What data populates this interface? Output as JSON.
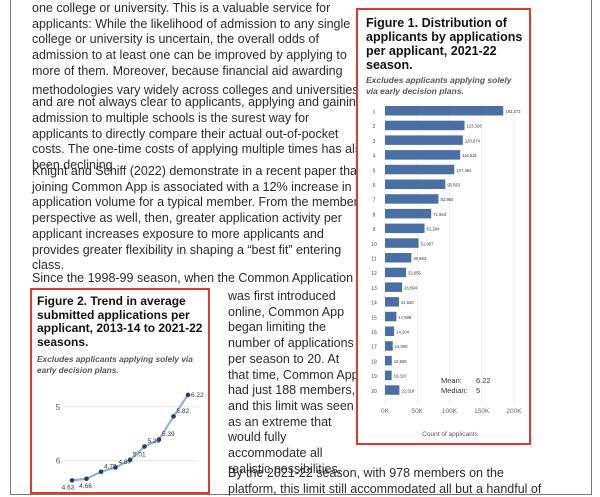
{
  "article": {
    "para1_lines": [
      "one college or university. This is a valuable service for",
      "applicants: While the likelihood of admission to any single",
      "college or university is uncertain, the overall odds of",
      "admission to at least one can be improved by applying to",
      "more of them. Moreover, because financial aid awarding",
      "methodologies vary widely across colleges and universities,",
      "and are not always clear to applicants, applying and gaining",
      "admission to multiple schools is the surest way for",
      "applicants to directly compare their actual out-of-pocket",
      "costs. The one-time costs of applying multiple times has also",
      "been declining"
    ],
    "footnote_marker": "1",
    "para2_lines": [
      "Knight and Schiff (2022) demonstrate in a recent paper that",
      "joining Common App is associated with a 12% increase in",
      "application volume for a typical member. From the member",
      "perspective as well, then, greater application activity per",
      "applicant increases exposure to more applicants and",
      "provides greater flexibility in shaping a “best fit” entering",
      "class."
    ],
    "para3_first_line": "Since the 1998-99 season, when the Common Application",
    "para3_side_lines": [
      "was first introduced",
      "online, Common App",
      "began limiting the",
      "number of applications",
      "per season to 20. At",
      "that time, Common App",
      "had just 188 members,",
      "and this limit was seen",
      "as an extreme that",
      "would fully",
      "accommodate all",
      "realistic possibilities."
    ],
    "para4_lines": [
      "By the 2021-22 season, with 978 members on the",
      "platform, this limit still accommodated all but a handful of"
    ]
  },
  "figure1": {
    "title_lines": [
      "Figure 1. Distribution of",
      "applicants by applications",
      "per applicant, 2021-22",
      "season."
    ],
    "subtitle_lines": [
      "Excludes applicants applying solely",
      "via early decision plans."
    ],
    "mean_label": "Mean:",
    "mean_value": "6.22",
    "median_label": "Median:",
    "median_value": "5",
    "xlabel": "Count of applicants",
    "x_ticks": [
      "0K",
      "50K",
      "100K",
      "150K",
      "200K"
    ]
  },
  "figure2": {
    "title_lines": [
      "Figure 2. Trend in average",
      "submitted applications per",
      "applicant, 2013-14 to 2021-22",
      "seasons."
    ],
    "subtitle_lines": [
      "Excludes applicants applying solely via",
      "early decision plans."
    ],
    "y_ticks": [
      "6",
      "5"
    ]
  },
  "chart_data": [
    {
      "type": "bar",
      "orientation": "horizontal",
      "title": "Figure 1. Distribution of applicants by applications per applicant, 2021-22 season.",
      "subtitle": "Excludes applicants applying solely via early decision plans.",
      "xlabel": "Count of applicants",
      "ylabel": "",
      "xlim": [
        0,
        200000
      ],
      "categories": [
        "1",
        "2",
        "3",
        "4",
        "5",
        "6",
        "7",
        "8",
        "9",
        "10",
        "11",
        "12",
        "13",
        "14",
        "15",
        "16",
        "17",
        "18",
        "19",
        "20"
      ],
      "values": [
        183373,
        123326,
        120674,
        116531,
        107461,
        93563,
        82950,
        71663,
        61284,
        51997,
        40863,
        32655,
        26594,
        21620,
        17688,
        14204,
        12005,
        10559,
        10310,
        22318
      ],
      "value_labels": [
        "183,373",
        "123,326",
        "120,674",
        "116,531",
        "107,461",
        "93,563",
        "82,950",
        "71,663",
        "61,284",
        "51,997",
        "40,863",
        "32,655",
        "26,594",
        "21,620",
        "17,688",
        "14,204",
        "12,005",
        "10,559",
        "10,310",
        "22,318"
      ],
      "bar_color": "#4a6fa5",
      "grid": true
    },
    {
      "type": "line",
      "title": "Figure 2. Trend in average submitted applications per applicant, 2013-14 to 2021-22 seasons.",
      "subtitle": "Excludes applicants applying solely via early decision plans.",
      "ylim": [
        4.6,
        6.2
      ],
      "y_ticks": [
        5,
        6
      ],
      "values": [
        4.63,
        4.66,
        4.79,
        4.87,
        5.01,
        5.26,
        5.39,
        5.82,
        6.22
      ],
      "value_labels": [
        "4.63",
        "4.66",
        "4.79",
        "4.87",
        "5.01",
        "5.26",
        "5.39",
        "5.82",
        "6.22"
      ],
      "line_color": "#8fb3dd",
      "marker_color": "#1f3f6e",
      "grid": true
    }
  ]
}
